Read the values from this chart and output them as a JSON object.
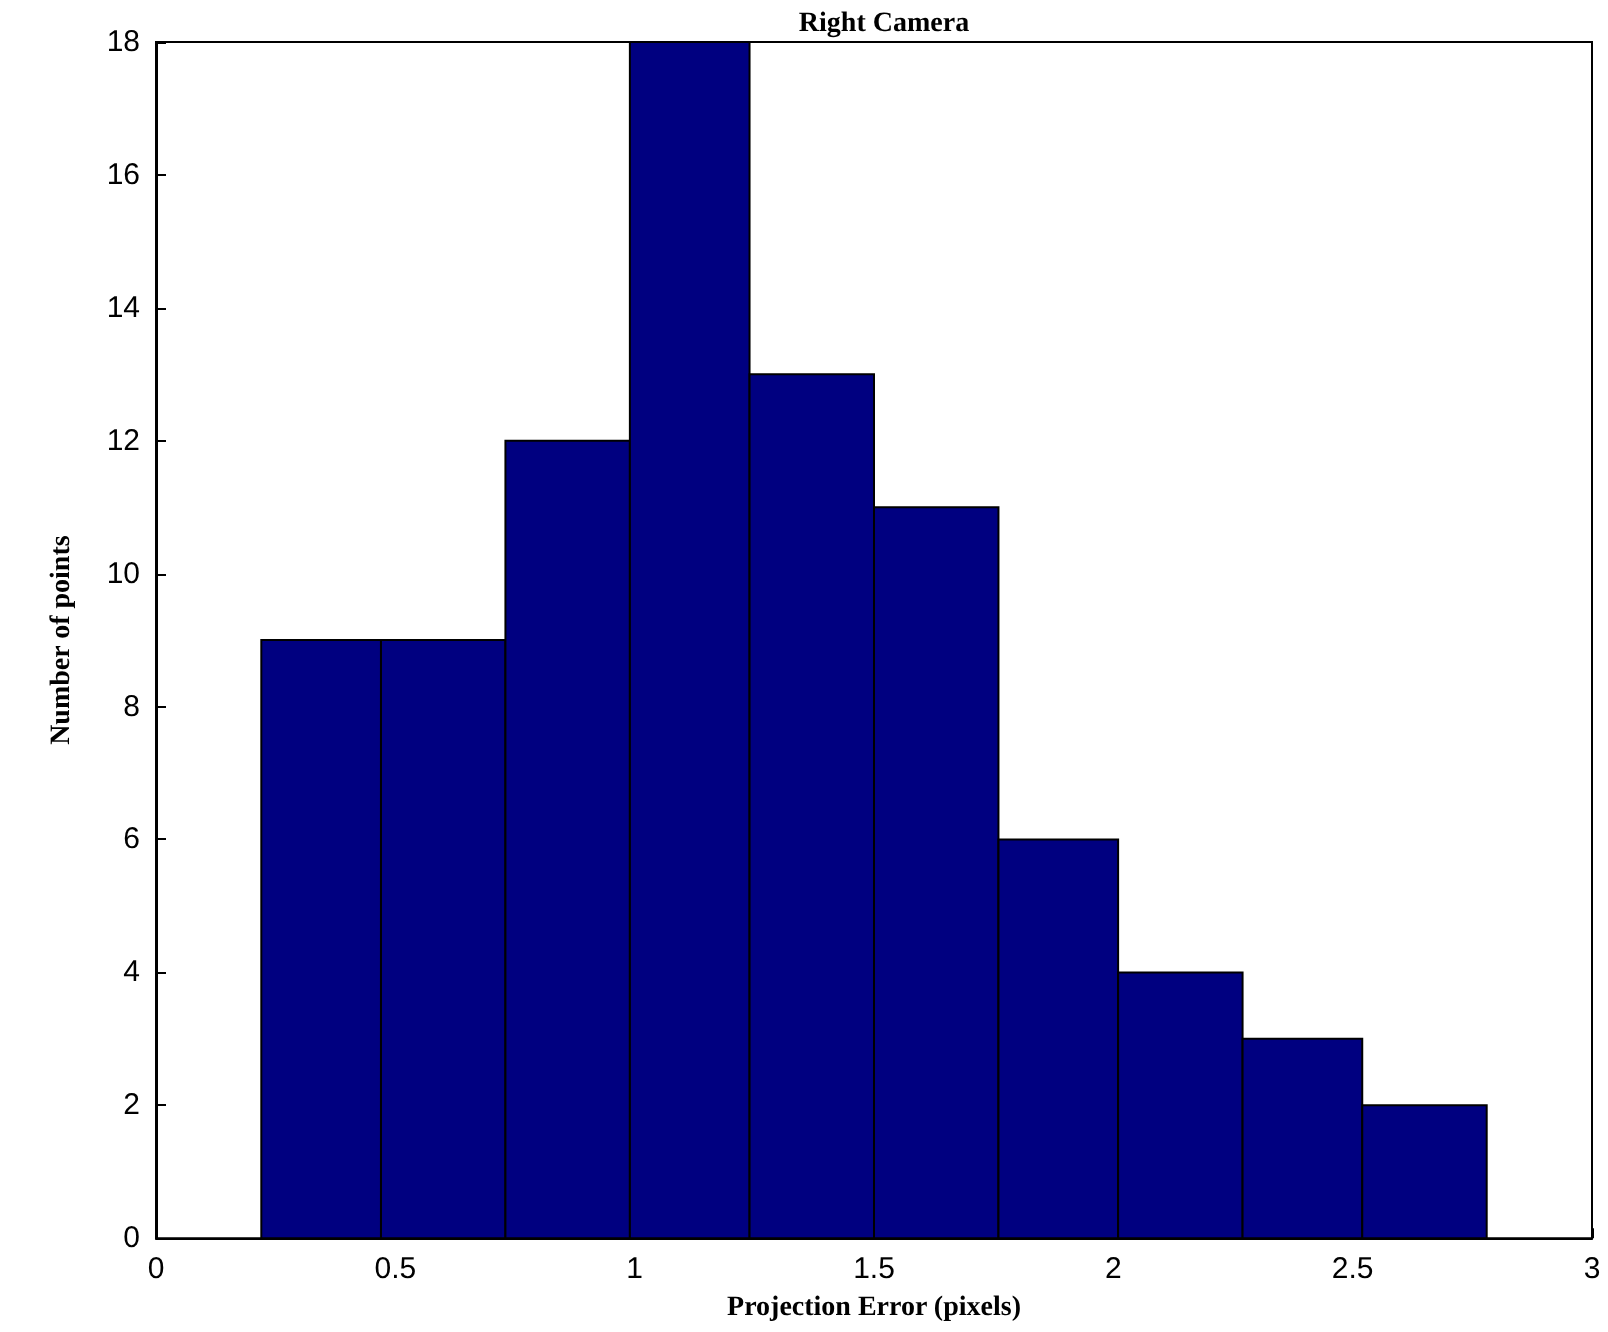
{
  "chart_data": {
    "type": "histogram",
    "title": "Right Camera",
    "xlabel": "Projection Error (pixels)",
    "ylabel": "Number of points",
    "bins": [
      0.22,
      0.47,
      0.73,
      0.99,
      1.24,
      1.5,
      1.76,
      2.01,
      2.27,
      2.52,
      2.78
    ],
    "values": [
      9,
      9,
      12,
      18,
      13,
      11,
      6,
      4,
      3,
      2
    ],
    "color": "#000080",
    "xlim": [
      0,
      3
    ],
    "xticks": [
      0,
      0.5,
      1,
      1.5,
      2,
      2.5,
      3
    ],
    "ylim": [
      0,
      18
    ],
    "yticks": [
      0,
      2,
      4,
      6,
      8,
      10,
      12,
      14,
      16,
      18
    ],
    "grid": false
  }
}
